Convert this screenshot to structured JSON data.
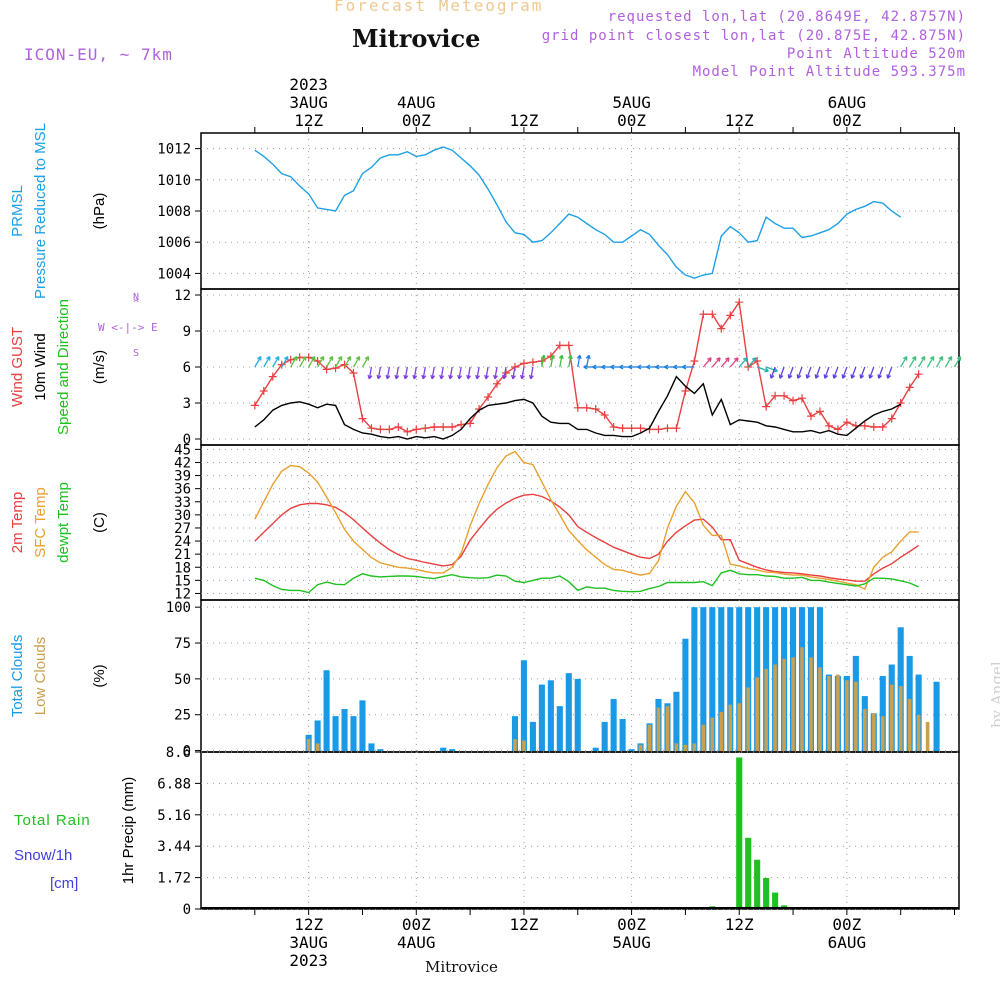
{
  "header": {
    "faint_title": "Forecast Meteogram",
    "location": "Mitrovice",
    "model": "ICON-EU, ~ 7km",
    "requested": "requested lon,lat (20.8649E, 42.8757N)",
    "grid_point": "grid point closest lon,lat (20.875E, 42.875N)",
    "point_altitude": "Point Altitude 520m",
    "model_altitude": "Model Point Altitude 593.375m",
    "footer_location": "Mitrovice",
    "watermark": "by Angel"
  },
  "colors": {
    "pressure": "#1ea0e6",
    "gust": "#e84040",
    "wind": "#000000",
    "wind_dir": "#20c020",
    "temp2m": "#e84040",
    "sfc_temp": "#e8a030",
    "dewpt": "#20c020",
    "total_clouds": "#1a9ae6",
    "low_clouds": "#c8a050",
    "rain": "#20c020",
    "snow": "#4040e0",
    "header_purple": "#b060e0"
  },
  "time_axis": {
    "top_labels": [
      {
        "hour": 12,
        "lines": [
          "2023",
          "3AUG",
          "12Z"
        ]
      },
      {
        "hour": 24,
        "lines": [
          "4AUG",
          "00Z"
        ]
      },
      {
        "hour": 36,
        "lines": [
          "12Z"
        ]
      },
      {
        "hour": 48,
        "lines": [
          "5AUG",
          "00Z"
        ]
      },
      {
        "hour": 60,
        "lines": [
          "12Z"
        ]
      },
      {
        "hour": 72,
        "lines": [
          "6AUG",
          "00Z"
        ]
      }
    ],
    "bottom_labels": [
      {
        "hour": 12,
        "lines": [
          "12Z",
          "3AUG",
          "2023"
        ]
      },
      {
        "hour": 24,
        "lines": [
          "00Z",
          "4AUG"
        ]
      },
      {
        "hour": 36,
        "lines": [
          "12Z"
        ]
      },
      {
        "hour": 48,
        "lines": [
          "00Z",
          "5AUG"
        ]
      },
      {
        "hour": 60,
        "lines": [
          "12Z"
        ]
      },
      {
        "hour": 72,
        "lines": [
          "00Z",
          "6AUG"
        ]
      }
    ]
  },
  "chart_data": [
    {
      "type": "line",
      "panel": "pressure",
      "title": "PRMSL Pressure Reduced to MSL",
      "ylabels": [
        "PRMSL",
        "Pressure Reduced to MSL"
      ],
      "unit": "(hPa)",
      "ylim": [
        1003,
        1013
      ],
      "yticks": [
        1004,
        1006,
        1008,
        1010,
        1012
      ],
      "x_start_hour": 6,
      "x_step_hours": 1,
      "series": [
        {
          "values": [
            1011.9,
            1011.5,
            1011.0,
            1010.4,
            1010.2,
            1009.6,
            1009.1,
            1008.2,
            1008.1,
            1008.0,
            1009.0,
            1009.3,
            1010.4,
            1010.8,
            1011.4,
            1011.6,
            1011.6,
            1011.8,
            1011.5,
            1011.6,
            1011.9,
            1012.1,
            1011.9,
            1011.4,
            1010.9,
            1010.3,
            1009.4,
            1008.4,
            1007.3,
            1006.6,
            1006.5,
            1006.0,
            1006.1,
            1006.6,
            1007.2,
            1007.8,
            1007.6,
            1007.2,
            1006.8,
            1006.5,
            1006.0,
            1006.0,
            1006.4,
            1006.8,
            1006.5,
            1005.8,
            1005.2,
            1004.4,
            1003.9,
            1003.7,
            1003.9,
            1004.0,
            1006.4,
            1007.0,
            1006.6,
            1006.0,
            1006.1,
            1007.6,
            1007.2,
            1006.9,
            1006.9,
            1006.3,
            1006.4,
            1006.6,
            1006.8,
            1007.2,
            1007.8,
            1008.1,
            1008.3,
            1008.6,
            1008.5,
            1008.0,
            1007.6
          ]
        }
      ]
    },
    {
      "type": "line",
      "panel": "wind",
      "title": "Wind GUST / 10m Wind Speed and Direction",
      "ylabels": [
        "Wind GUST",
        "10m Wind",
        "Speed and Direction"
      ],
      "unit": "(m/s)",
      "compass": [
        "N",
        "W",
        "E",
        "S"
      ],
      "ylim": [
        -0.5,
        12.5
      ],
      "yticks": [
        0,
        3,
        6,
        9,
        12
      ],
      "x_start_hour": 6,
      "x_step_hours": 1,
      "series": [
        {
          "name": "Wind GUST",
          "values": [
            2.8,
            4.0,
            5.2,
            6.2,
            6.6,
            6.8,
            6.8,
            6.5,
            5.8,
            5.9,
            6.2,
            5.5,
            1.7,
            0.9,
            0.8,
            0.8,
            1.0,
            0.6,
            0.8,
            0.9,
            1.0,
            1.0,
            1.0,
            1.2,
            1.3,
            2.5,
            3.5,
            4.6,
            5.5,
            6.0,
            6.3,
            6.4,
            6.5,
            6.9,
            7.8,
            7.8,
            2.6,
            2.6,
            2.5,
            2.0,
            1.0,
            0.9,
            0.9,
            0.9,
            0.8,
            0.8,
            0.9,
            0.9,
            4.0,
            6.5,
            10.4,
            10.4,
            9.2,
            10.3,
            11.4,
            6.0,
            6.5,
            2.7,
            3.6,
            3.6,
            3.2,
            3.4,
            1.9,
            2.3,
            1.1,
            0.8,
            1.4,
            1.1,
            1.1,
            1.0,
            1.0,
            1.7,
            3.0,
            4.3,
            5.4
          ]
        },
        {
          "name": "10m Wind",
          "values": [
            1.0,
            1.6,
            2.4,
            2.8,
            3.0,
            3.1,
            2.9,
            2.6,
            2.9,
            2.8,
            1.2,
            0.8,
            0.5,
            0.4,
            0.2,
            0.1,
            0.2,
            0.0,
            0.2,
            0.1,
            0.2,
            0.0,
            0.3,
            0.8,
            1.7,
            2.4,
            2.8,
            2.9,
            3.0,
            3.2,
            3.3,
            3.0,
            1.9,
            1.4,
            1.3,
            1.3,
            0.8,
            0.8,
            0.5,
            0.3,
            0.3,
            0.2,
            0.2,
            0.5,
            0.9,
            2.3,
            3.6,
            5.2,
            4.4,
            3.8,
            4.6,
            2.0,
            3.3,
            1.2,
            1.6,
            1.5,
            1.4,
            1.1,
            1.0,
            0.8,
            0.6,
            0.6,
            0.7,
            0.5,
            0.7,
            0.4,
            0.3,
            0.9,
            1.5,
            2.0,
            2.3,
            2.5,
            2.9
          ]
        }
      ]
    },
    {
      "type": "line",
      "panel": "temperature",
      "title": "2m Temp / SFC Temp / dewpt Temp",
      "ylabels": [
        "2m Temp",
        "SFC Temp",
        "dewpt Temp"
      ],
      "unit": "(C)",
      "ylim": [
        10.5,
        46
      ],
      "yticks": [
        12,
        15,
        18,
        21,
        24,
        27,
        30,
        33,
        36,
        39,
        42,
        45
      ],
      "x_start_hour": 6,
      "x_step_hours": 1,
      "series": [
        {
          "name": "2m Temp",
          "values": [
            24,
            26,
            28,
            30,
            31.5,
            32.3,
            32.6,
            32.6,
            32.3,
            31.7,
            30.5,
            28.9,
            27,
            25.2,
            23.5,
            22,
            20.9,
            20,
            19.6,
            19.1,
            18.7,
            18.3,
            18.6,
            20.5,
            24.2,
            26.8,
            29.3,
            31.3,
            32.7,
            33.8,
            34.5,
            34.7,
            34.2,
            33.2,
            31.8,
            30.0,
            27.3,
            26.0,
            24.8,
            23.7,
            22.6,
            21.8,
            21.0,
            20.3,
            20.0,
            21.0,
            24.0,
            26.0,
            27.5,
            28.8,
            29.0,
            27.2,
            24.3,
            24.3,
            19.6,
            18.8,
            18.0,
            17.4,
            17.0,
            16.8,
            16.7,
            16.5,
            16.2,
            16.0,
            15.6,
            15.3,
            15.1,
            14.8,
            14.8,
            16.5,
            17.8,
            18.8,
            20.3,
            21.6,
            23.0
          ]
        },
        {
          "name": "SFC Temp",
          "values": [
            29,
            33,
            37,
            40,
            41.3,
            41,
            39.6,
            37.5,
            34.1,
            30.5,
            26.7,
            24,
            22.1,
            20.2,
            19,
            18.5,
            18,
            17.8,
            17.5,
            17,
            16.7,
            16.7,
            18,
            21.2,
            27.5,
            32.6,
            37.0,
            40.8,
            43.5,
            44.5,
            42,
            41.5,
            37.5,
            33.5,
            30,
            26.4,
            24.1,
            22,
            20.3,
            18.6,
            17.5,
            17.3,
            16.7,
            16.2,
            16.6,
            19.5,
            27,
            32,
            35.3,
            32.8,
            27.6,
            25.3,
            25.3,
            18.7,
            18.3,
            17.7,
            17.4,
            16.9,
            16.8,
            16.4,
            16.2,
            16.2,
            15.8,
            15.5,
            15.2,
            14.8,
            14.4,
            14.0,
            13.0,
            18,
            20.3,
            21.5,
            24.0,
            26.1,
            26.1
          ]
        },
        {
          "name": "dewpt Temp",
          "values": [
            15.5,
            15,
            13.8,
            12.9,
            12.7,
            12.7,
            12.2,
            14,
            14.6,
            14.1,
            14.0,
            15.5,
            16.5,
            16.0,
            15.8,
            15.9,
            16.0,
            16.0,
            15.9,
            15.6,
            15.4,
            15.9,
            16.3,
            15.8,
            15.6,
            15.5,
            15.6,
            16.2,
            16.0,
            14.8,
            14.5,
            15.0,
            15.5,
            15.5,
            16.0,
            14.7,
            12.7,
            13.5,
            13.2,
            13.2,
            12.7,
            12.5,
            12.4,
            12.5,
            13.1,
            13.6,
            14.5,
            14.5,
            14.5,
            14.5,
            14.7,
            13.8,
            16.7,
            17.3,
            16.5,
            16.3,
            16.3,
            16.0,
            15.9,
            15.5,
            15.5,
            15.7,
            15.0,
            15.0,
            14.6,
            14.3,
            14.0,
            13.7,
            14.2,
            15.5,
            15.5,
            15.3,
            14.9,
            14.4,
            13.5
          ]
        }
      ]
    },
    {
      "type": "bar",
      "panel": "clouds",
      "title": "Total Clouds / Low Clouds",
      "ylabels": [
        "Total Clouds",
        "Low Clouds"
      ],
      "unit": "(%)",
      "ylim": [
        -1,
        105
      ],
      "yticks": [
        0,
        25,
        50,
        75,
        100
      ],
      "x_start_hour": 6,
      "x_step_hours": 1,
      "series": [
        {
          "name": "Total Clouds",
          "values": [
            0,
            0,
            0,
            0,
            0,
            0,
            11,
            21,
            56,
            24,
            29,
            24,
            35,
            5,
            1,
            0,
            0,
            0,
            0,
            0,
            0,
            2,
            1,
            0,
            0,
            0,
            0,
            0,
            0,
            24,
            63,
            20,
            46,
            49,
            31,
            54,
            50,
            0,
            2,
            20,
            36,
            22,
            1,
            5,
            19,
            36,
            33,
            41,
            78,
            100,
            100,
            100,
            100,
            100,
            100,
            100,
            100,
            100,
            100,
            100,
            100,
            100,
            100,
            100,
            53,
            52,
            52,
            66,
            38,
            26,
            52,
            60,
            86,
            66,
            53,
            0,
            48
          ]
        },
        {
          "name": "Low Clouds",
          "values": [
            0,
            0,
            0,
            0,
            0,
            0,
            8,
            5,
            0,
            0,
            0,
            0,
            0,
            0,
            0,
            0,
            0,
            0,
            0,
            0,
            0,
            0,
            0,
            0,
            0,
            0,
            0,
            0,
            0,
            8,
            7,
            0,
            0,
            0,
            0,
            0,
            0,
            0,
            0,
            0,
            0,
            0,
            0,
            4,
            18,
            30,
            31,
            5,
            4,
            5,
            18,
            23,
            27,
            32,
            33,
            44,
            51,
            57,
            60,
            64,
            65,
            72,
            65,
            58,
            52,
            53,
            49,
            48,
            29,
            26,
            24,
            46,
            45,
            36,
            25,
            20,
            0
          ]
        }
      ]
    },
    {
      "type": "bar",
      "panel": "precip",
      "title": "1hr Precip (mm)",
      "ylabels": [
        "Total Rain",
        "Snow/1h",
        "[cm]"
      ],
      "unit": "1hr Precip (mm)",
      "ylim": [
        0,
        8.6
      ],
      "yticks": [
        0,
        1.72,
        3.44,
        5.16,
        6.88,
        8.6
      ],
      "ytick_labels": [
        "0",
        "1.72",
        "3.44",
        "5.16",
        "6.88",
        "8.6"
      ],
      "x_start_hour": 6,
      "x_step_hours": 1,
      "series": [
        {
          "name": "Total Rain",
          "values": [
            0,
            0,
            0,
            0,
            0,
            0,
            0,
            0,
            0,
            0,
            0,
            0,
            0,
            0,
            0,
            0,
            0,
            0,
            0,
            0,
            0,
            0,
            0,
            0,
            0,
            0,
            0,
            0,
            0,
            0,
            0,
            0,
            0,
            0,
            0,
            0,
            0,
            0,
            0,
            0,
            0,
            0,
            0,
            0,
            0,
            0,
            0,
            0,
            0,
            0,
            0,
            0.15,
            0,
            0.05,
            8.3,
            3.9,
            2.7,
            1.7,
            0.9,
            0.2,
            0,
            0,
            0,
            0,
            0,
            0,
            0,
            0,
            0,
            0,
            0,
            0,
            0,
            0,
            0
          ]
        },
        {
          "name": "Snow/1h",
          "values": [
            0,
            0,
            0,
            0,
            0,
            0,
            0,
            0,
            0,
            0,
            0,
            0,
            0,
            0,
            0,
            0,
            0,
            0,
            0,
            0,
            0,
            0,
            0,
            0,
            0,
            0,
            0,
            0,
            0,
            0,
            0,
            0,
            0,
            0,
            0,
            0,
            0,
            0,
            0,
            0,
            0,
            0,
            0,
            0,
            0,
            0,
            0,
            0,
            0,
            0,
            0,
            0,
            0,
            0,
            0,
            0,
            0,
            0,
            0,
            0,
            0,
            0,
            0,
            0,
            0,
            0,
            0,
            0,
            0,
            0,
            0,
            0,
            0,
            0,
            0
          ]
        }
      ]
    }
  ]
}
